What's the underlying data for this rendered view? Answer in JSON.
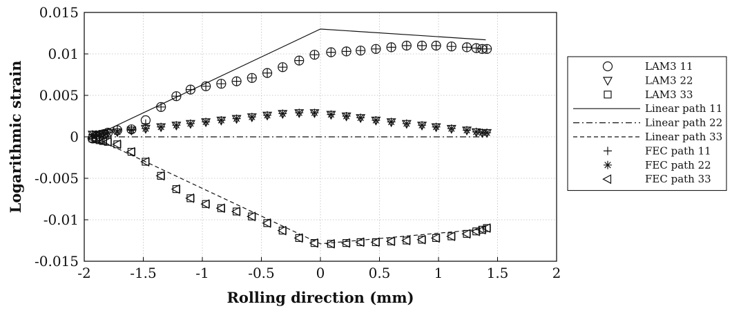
{
  "chart_data": {
    "type": "scatter",
    "xlabel": "Rolling direction (mm)",
    "ylabel": "Logarithmic strain",
    "xlim": [
      -2,
      2
    ],
    "ylim": [
      -0.015,
      0.015
    ],
    "grid": true,
    "legend_placement": "right, outside plot",
    "xticks": [
      "-2",
      "-1.5",
      "-1",
      "-0.5",
      "0",
      "0.5",
      "1",
      "1.5",
      "2"
    ],
    "yticks": [
      "0.015",
      "0.01",
      "0.005",
      "0",
      "-0.005",
      "-0.01",
      "-0.015"
    ],
    "x": [
      -1.93,
      -1.9,
      -1.87,
      -1.84,
      -1.8,
      -1.72,
      -1.6,
      -1.48,
      -1.35,
      -1.22,
      -1.1,
      -0.97,
      -0.84,
      -0.71,
      -0.58,
      -0.45,
      -0.32,
      -0.18,
      -0.05,
      0.09,
      0.22,
      0.34,
      0.47,
      0.6,
      0.73,
      0.86,
      0.98,
      1.11,
      1.24,
      1.32,
      1.37,
      1.41
    ],
    "series": [
      {
        "name": "LAM3 11",
        "marker": "circle",
        "values": [
          -0.0002,
          0.0,
          0.0001,
          0.0003,
          0.0005,
          0.0008,
          0.0009,
          0.002,
          0.0036,
          0.0049,
          0.0057,
          0.0061,
          0.0064,
          0.0067,
          0.0071,
          0.0077,
          0.0084,
          0.0092,
          0.0099,
          0.0102,
          0.0103,
          0.0104,
          0.0106,
          0.0108,
          0.011,
          0.011,
          0.011,
          0.0109,
          0.0108,
          0.0107,
          0.0106,
          0.0106
        ]
      },
      {
        "name": "LAM3 22",
        "marker": "triangle-down",
        "values": [
          0.0003,
          0.0003,
          0.0003,
          0.0004,
          0.0005,
          0.0006,
          0.0008,
          0.001,
          0.0012,
          0.0014,
          0.0016,
          0.0018,
          0.002,
          0.0022,
          0.0024,
          0.0026,
          0.0028,
          0.0029,
          0.0029,
          0.0027,
          0.0025,
          0.0023,
          0.002,
          0.0018,
          0.0016,
          0.0014,
          0.0012,
          0.001,
          0.0008,
          0.0006,
          0.0005,
          0.0005
        ]
      },
      {
        "name": "LAM3 33",
        "marker": "square",
        "values": [
          -0.0002,
          -0.0003,
          -0.0004,
          -0.0005,
          -0.0006,
          -0.0009,
          -0.0018,
          -0.003,
          -0.0047,
          -0.0063,
          -0.0074,
          -0.0081,
          -0.0086,
          -0.009,
          -0.0096,
          -0.0104,
          -0.0113,
          -0.0122,
          -0.0128,
          -0.0129,
          -0.0128,
          -0.0127,
          -0.0127,
          -0.0126,
          -0.0125,
          -0.0124,
          -0.0122,
          -0.012,
          -0.0117,
          -0.0114,
          -0.0112,
          -0.011
        ]
      },
      {
        "name": "Linear path 11",
        "line": "solid",
        "points": [
          [
            -1.93,
            0.0
          ],
          [
            0.0,
            0.013
          ],
          [
            1.4,
            0.0117
          ]
        ]
      },
      {
        "name": "Linear path 22",
        "line": "dash-dot",
        "points": [
          [
            -1.93,
            0.0
          ],
          [
            1.4,
            0.0
          ]
        ]
      },
      {
        "name": "Linear path 33",
        "line": "dashed",
        "points": [
          [
            -1.93,
            0.0
          ],
          [
            0.0,
            -0.0129
          ],
          [
            1.4,
            -0.0111
          ]
        ]
      },
      {
        "name": "FEC path 11",
        "marker": "plus",
        "values": [
          -0.0002,
          0.0,
          0.0001,
          0.0003,
          0.0005,
          0.0008,
          0.0009,
          0.0016,
          0.0036,
          0.0049,
          0.0057,
          0.0061,
          0.0064,
          0.0067,
          0.0071,
          0.0077,
          0.0084,
          0.0092,
          0.0099,
          0.0102,
          0.0103,
          0.0104,
          0.0106,
          0.0108,
          0.011,
          0.011,
          0.011,
          0.0109,
          0.0108,
          0.0107,
          0.0106,
          0.0106
        ]
      },
      {
        "name": "FEC path 22",
        "marker": "asterisk",
        "values": [
          0.0003,
          0.0003,
          0.0003,
          0.0004,
          0.0005,
          0.0006,
          0.0008,
          0.001,
          0.0012,
          0.0014,
          0.0016,
          0.0018,
          0.002,
          0.0022,
          0.0024,
          0.0026,
          0.0028,
          0.0029,
          0.0029,
          0.0027,
          0.0025,
          0.0023,
          0.002,
          0.0018,
          0.0016,
          0.0014,
          0.0012,
          0.001,
          0.0008,
          0.0006,
          0.0005,
          0.0005
        ]
      },
      {
        "name": "FEC path 33",
        "marker": "triangle-left",
        "values": [
          -0.0002,
          -0.0003,
          -0.0004,
          -0.0005,
          -0.0006,
          -0.0009,
          -0.0018,
          -0.003,
          -0.0047,
          -0.0063,
          -0.0074,
          -0.0081,
          -0.0086,
          -0.009,
          -0.0096,
          -0.0104,
          -0.0113,
          -0.0122,
          -0.0128,
          -0.0129,
          -0.0128,
          -0.0127,
          -0.0127,
          -0.0126,
          -0.0125,
          -0.0124,
          -0.0122,
          -0.012,
          -0.0117,
          -0.0114,
          -0.0112,
          -0.011
        ]
      }
    ]
  }
}
